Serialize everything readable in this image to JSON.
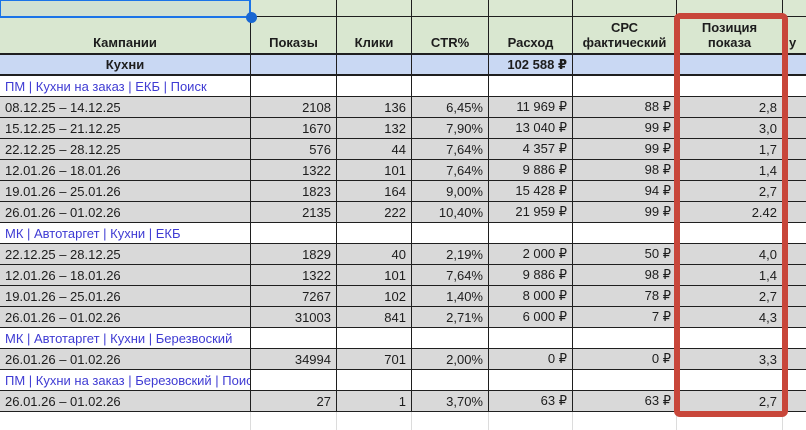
{
  "app": {
    "kind": "spreadsheet"
  },
  "colors": {
    "header_bg": "#d9e7d0",
    "summary_bg": "#c9d8f3",
    "data_row_bg": "#d9d9d9",
    "link_text": "#3f3bd3",
    "grid_border": "#1f1f1f",
    "selection_blue": "#1a73e8",
    "handle_blue": "#1967d2",
    "highlight_red": "#c8463a"
  },
  "selection": {
    "handle": "fill-handle"
  },
  "highlight": {
    "column_label": "Позиция показа"
  },
  "table": {
    "columns": [
      {
        "key": "campaign",
        "label": "Кампании"
      },
      {
        "key": "impressions",
        "label": "Показы"
      },
      {
        "key": "clicks",
        "label": "Клики"
      },
      {
        "key": "ctr",
        "label": "CTR%"
      },
      {
        "key": "spend",
        "label": "Расход"
      },
      {
        "key": "cpc_actual",
        "label": "СРС фактический"
      },
      {
        "key": "impression_position",
        "label": "Позиция показа"
      },
      {
        "key": "extra_clipped",
        "label": "у"
      }
    ],
    "summary": {
      "label": "Кухни",
      "spend": "102 588 ₽"
    },
    "groups": [
      {
        "name": "ПМ | Кухни на заказ | ЕКБ | Поиск",
        "rows": [
          [
            "08.12.25 – 14.12.25",
            "2108",
            "136",
            "6,45%",
            "11 969 ₽",
            "88 ₽",
            "2,8"
          ],
          [
            "15.12.25 – 21.12.25",
            "1670",
            "132",
            "7,90%",
            "13 040 ₽",
            "99 ₽",
            "3,0"
          ],
          [
            "22.12.25 – 28.12.25",
            "576",
            "44",
            "7,64%",
            "4 357 ₽",
            "99 ₽",
            "1,7"
          ],
          [
            "12.01.26 – 18.01.26",
            "1322",
            "101",
            "7,64%",
            "9 886 ₽",
            "98 ₽",
            "1,4"
          ],
          [
            "19.01.26 – 25.01.26",
            "1823",
            "164",
            "9,00%",
            "15 428 ₽",
            "94 ₽",
            "2,7"
          ],
          [
            "26.01.26 – 01.02.26",
            "2135",
            "222",
            "10,40%",
            "21 959 ₽",
            "99 ₽",
            "2.42"
          ]
        ]
      },
      {
        "name": "МК | Автотаргет | Кухни | ЕКБ",
        "rows": [
          [
            "22.12.25 – 28.12.25",
            "1829",
            "40",
            "2,19%",
            "2 000 ₽",
            "50 ₽",
            "4,0"
          ],
          [
            "12.01.26 – 18.01.26",
            "1322",
            "101",
            "7,64%",
            "9 886 ₽",
            "98 ₽",
            "1,4"
          ],
          [
            "19.01.26 – 25.01.26",
            "7267",
            "102",
            "1,40%",
            "8 000 ₽",
            "78 ₽",
            "2,7"
          ],
          [
            "26.01.26 – 01.02.26",
            "31003",
            "841",
            "2,71%",
            "6 000 ₽",
            "7 ₽",
            "4,3"
          ]
        ]
      },
      {
        "name": "МК | Автотаргет | Кухни | Березвоский",
        "rows": [
          [
            "26.01.26 – 01.02.26",
            "34994",
            "701",
            "2,00%",
            "0 ₽",
            "0 ₽",
            "3,3"
          ]
        ]
      },
      {
        "name": "ПМ | Кухни на заказ | Березовский | Поиск",
        "rows": [
          [
            "26.01.26 – 01.02.26",
            "27",
            "1",
            "3,70%",
            "63 ₽",
            "63 ₽",
            "2,7"
          ]
        ]
      }
    ]
  }
}
